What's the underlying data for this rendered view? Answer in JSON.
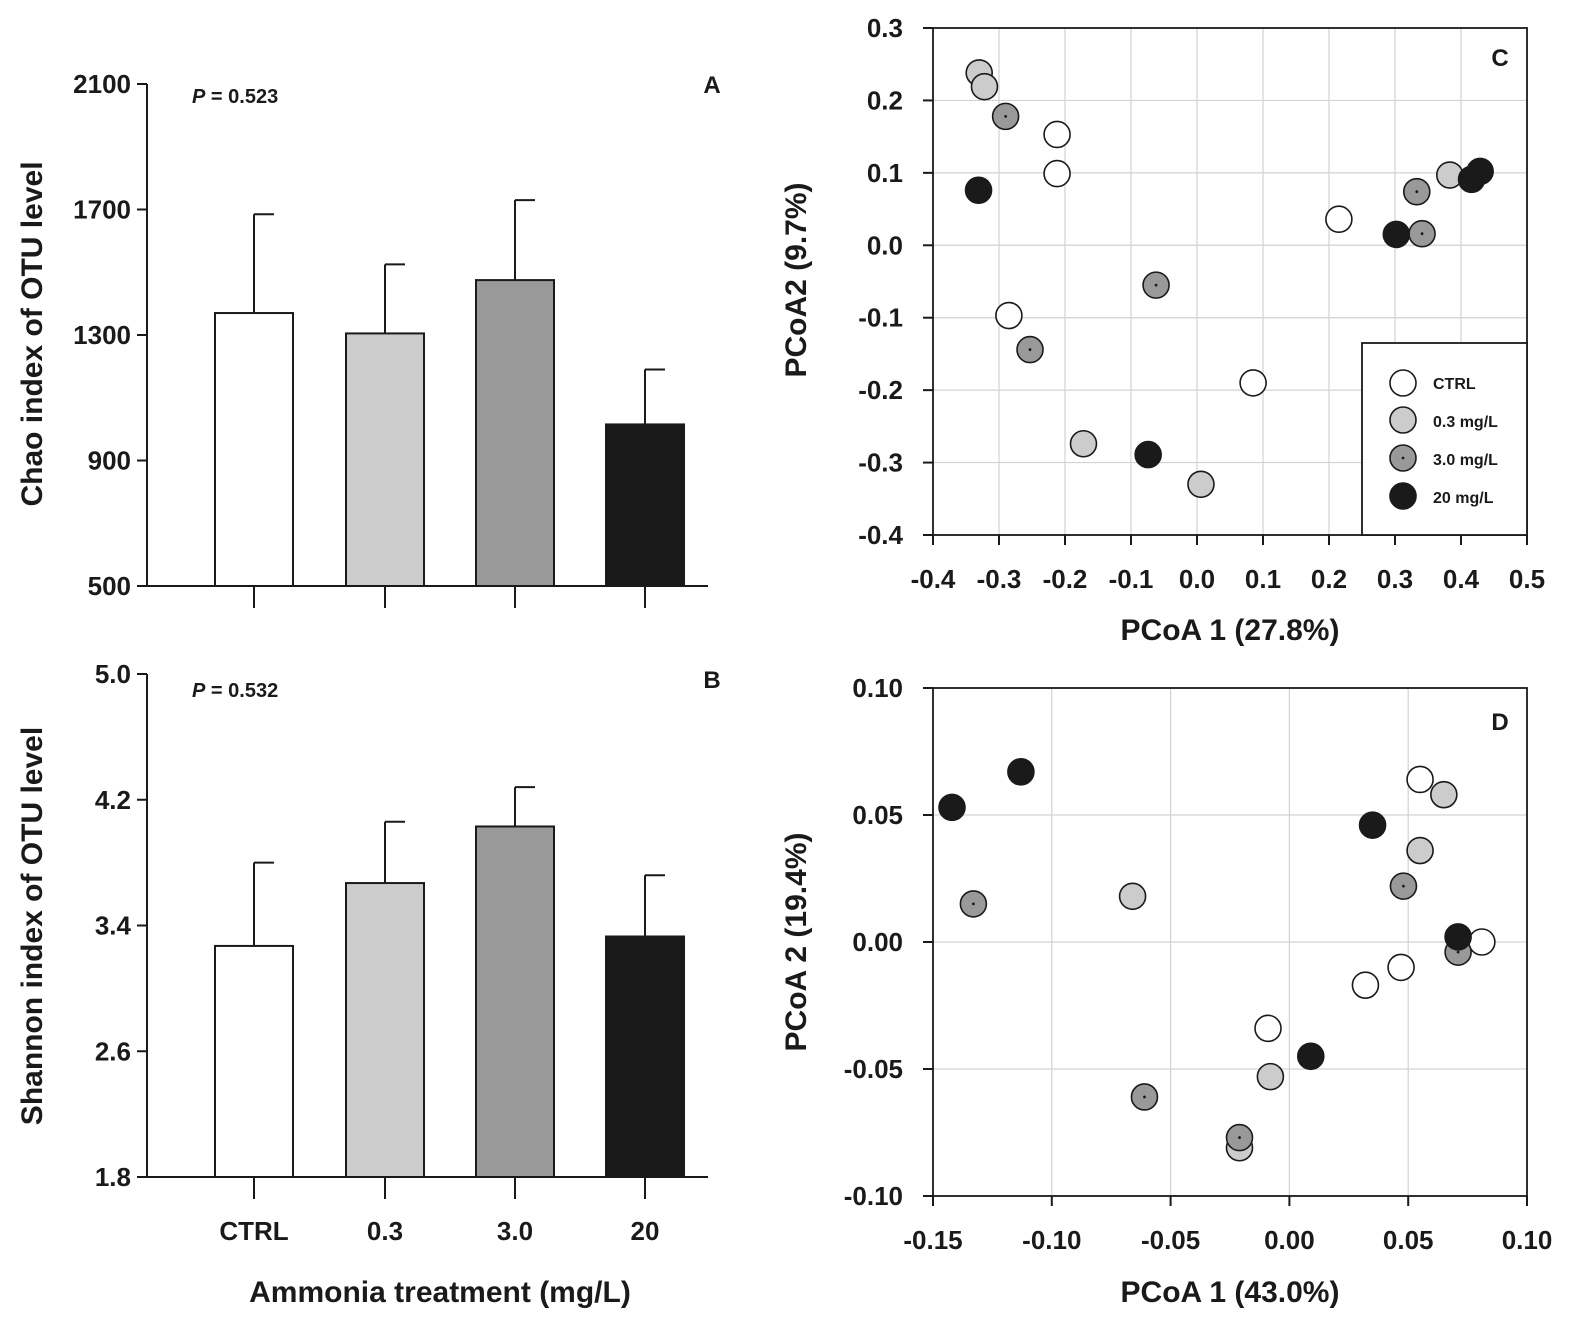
{
  "figure": {
    "shared_xlabel": "Ammonia treatment (mg/L)",
    "colors": {
      "CTRL": "#ffffff",
      "0.3": "#cccccc",
      "3.0": "#999999",
      "20": "#1a1a1a",
      "grid": "#d3d3d3",
      "axis": "#1a1a1a"
    }
  },
  "chart_data": [
    {
      "id": "A",
      "type": "bar",
      "panel_label": "A",
      "annotation_prefix": "P",
      "annotation_value": " = 0.523",
      "categories": [
        "CTRL",
        "0.3",
        "3.0",
        "20"
      ],
      "values": [
        1370,
        1305,
        1475,
        1015
      ],
      "errors": [
        315,
        220,
        255,
        175
      ],
      "ylabel": "Chao index of OTU level",
      "xlabel": "",
      "ylim": [
        500,
        2100
      ],
      "yticks": [
        500,
        900,
        1300,
        1700,
        2100
      ],
      "ytick_labels": [
        "500",
        "900",
        "1300",
        "1700",
        "2100"
      ],
      "show_category_labels": false
    },
    {
      "id": "B",
      "type": "bar",
      "panel_label": "B",
      "annotation_prefix": "P",
      "annotation_value": " = 0.532",
      "categories": [
        "CTRL",
        "0.3",
        "3.0",
        "20"
      ],
      "values": [
        3.27,
        3.67,
        4.03,
        3.33
      ],
      "errors": [
        0.53,
        0.39,
        0.25,
        0.39
      ],
      "ylabel": "Shannon index of OTU level",
      "xlabel": "Ammonia treatment (mg/L)",
      "ylim": [
        1.8,
        5.0
      ],
      "yticks": [
        1.8,
        2.6,
        3.4,
        4.2,
        5.0
      ],
      "ytick_labels": [
        "1.8",
        "2.6",
        "3.4",
        "4.2",
        "5.0"
      ],
      "show_category_labels": true
    },
    {
      "id": "C",
      "type": "scatter",
      "panel_label": "C",
      "xlabel": "PCoA 1 (27.8%)",
      "ylabel": "PCoA2 (9.7%)",
      "xlim": [
        -0.4,
        0.5
      ],
      "ylim": [
        -0.4,
        0.3
      ],
      "xticks": [
        -0.4,
        -0.3,
        -0.2,
        -0.1,
        0.0,
        0.1,
        0.2,
        0.3,
        0.4,
        0.5
      ],
      "xtick_labels": [
        "-0.4",
        "-0.3",
        "-0.2",
        "-0.1",
        "0.0",
        "0.1",
        "0.2",
        "0.3",
        "0.4",
        "0.5"
      ],
      "yticks": [
        -0.4,
        -0.3,
        -0.2,
        -0.1,
        0.0,
        0.1,
        0.2,
        0.3
      ],
      "ytick_labels": [
        "-0.4",
        "-0.3",
        "-0.2",
        "-0.1",
        "0.0",
        "0.1",
        "0.2",
        "0.3"
      ],
      "grid": true,
      "legend": {
        "placement": "bottom-right",
        "entries": [
          {
            "group": "CTRL",
            "label": "CTRL"
          },
          {
            "group": "0.3",
            "label": "0.3 mg/L"
          },
          {
            "group": "3.0",
            "label": "3.0 mg/L"
          },
          {
            "group": "20",
            "label": "20 mg/L"
          }
        ]
      },
      "series": [
        {
          "group": "CTRL",
          "points": [
            [
              -0.212,
              0.153
            ],
            [
              -0.212,
              0.099
            ],
            [
              -0.285,
              -0.097
            ],
            [
              0.085,
              -0.19
            ],
            [
              0.215,
              0.036
            ]
          ]
        },
        {
          "group": "0.3",
          "points": [
            [
              -0.33,
              0.238
            ],
            [
              -0.322,
              0.219
            ],
            [
              -0.172,
              -0.274
            ],
            [
              0.006,
              -0.33
            ],
            [
              0.383,
              0.097
            ]
          ]
        },
        {
          "group": "3.0",
          "points": [
            [
              -0.29,
              0.178
            ],
            [
              -0.253,
              -0.144
            ],
            [
              -0.062,
              -0.055
            ],
            [
              0.333,
              0.074
            ],
            [
              0.341,
              0.016
            ]
          ]
        },
        {
          "group": "20",
          "points": [
            [
              -0.331,
              0.076
            ],
            [
              -0.074,
              -0.289
            ],
            [
              0.302,
              0.015
            ],
            [
              0.416,
              0.091
            ],
            [
              0.429,
              0.102
            ]
          ]
        }
      ]
    },
    {
      "id": "D",
      "type": "scatter",
      "panel_label": "D",
      "xlabel": "PCoA 1 (43.0%)",
      "ylabel": "PCoA 2 (19.4%)",
      "xlim": [
        -0.15,
        0.1
      ],
      "ylim": [
        -0.1,
        0.1
      ],
      "xticks": [
        -0.15,
        -0.1,
        -0.05,
        0.0,
        0.05,
        0.1
      ],
      "xtick_labels": [
        "-0.15",
        "-0.10",
        "-0.05",
        "0.00",
        "0.05",
        "0.10"
      ],
      "yticks": [
        -0.1,
        -0.05,
        0.0,
        0.05,
        0.1
      ],
      "ytick_labels": [
        "-0.10",
        "-0.05",
        "0.00",
        "0.05",
        "0.10"
      ],
      "grid": true,
      "series": [
        {
          "group": "CTRL",
          "points": [
            [
              0.055,
              0.064
            ],
            [
              0.081,
              0.0
            ],
            [
              0.047,
              -0.01
            ],
            [
              0.032,
              -0.017
            ],
            [
              -0.009,
              -0.034
            ]
          ]
        },
        {
          "group": "0.3",
          "points": [
            [
              0.065,
              0.058
            ],
            [
              0.055,
              0.036
            ],
            [
              -0.066,
              0.018
            ],
            [
              -0.008,
              -0.053
            ],
            [
              -0.021,
              -0.081
            ]
          ]
        },
        {
          "group": "3.0",
          "points": [
            [
              0.048,
              0.022
            ],
            [
              0.071,
              -0.004
            ],
            [
              -0.133,
              0.015
            ],
            [
              -0.061,
              -0.061
            ],
            [
              -0.021,
              -0.077
            ]
          ]
        },
        {
          "group": "20",
          "points": [
            [
              -0.142,
              0.053
            ],
            [
              -0.113,
              0.067
            ],
            [
              0.035,
              0.046
            ],
            [
              0.071,
              0.002
            ],
            [
              0.009,
              -0.045
            ]
          ]
        }
      ]
    }
  ]
}
